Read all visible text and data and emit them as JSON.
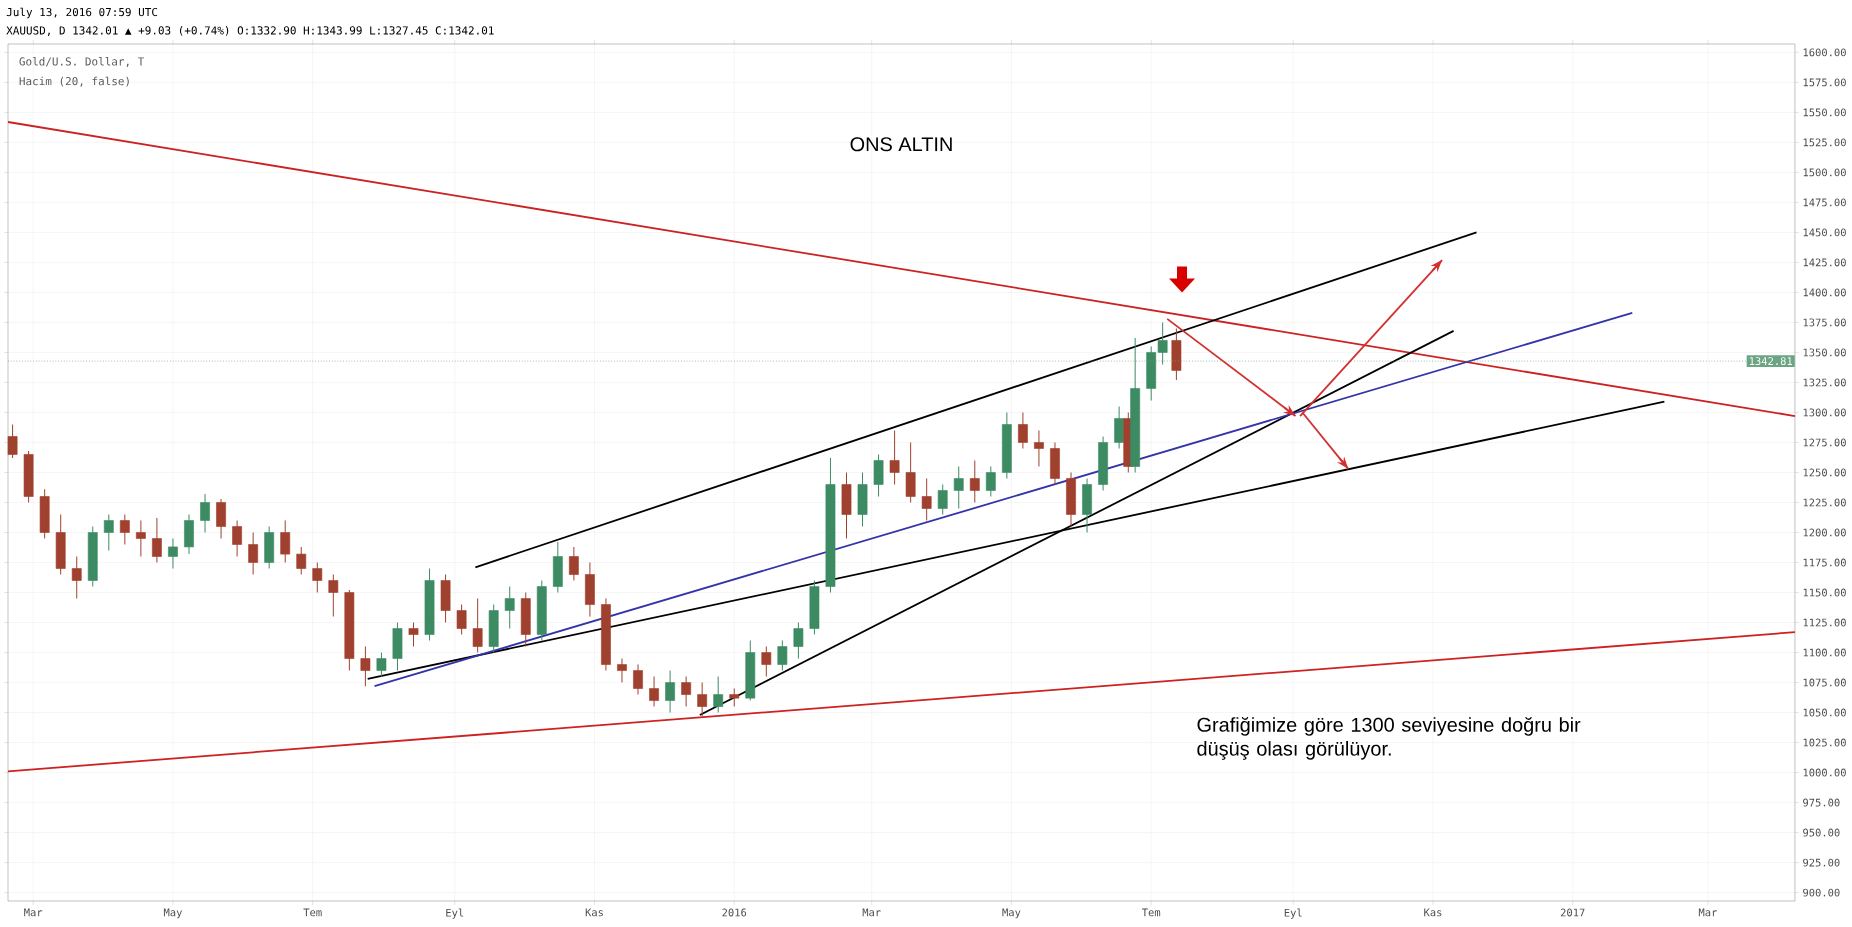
{
  "chart_data": {
    "type": "candlestick",
    "title": "ONS ALTIN",
    "annotations": [
      "July 13, 2016 07:59 UTC",
      "XAUUSD, D 1342.01 ▲ +9.03 (+0.74%) O:1332.90 H:1343.99 L:1327.45 C:1342.01",
      "Gold/U.S. Dollar, T",
      "Hacim (20, false)",
      "Grafiğimize göre 1300 seviyesine doğru bir düşüş olası görülüyor."
    ],
    "x": [
      "2015-02-20",
      "2015-02-27",
      "2015-03-06",
      "2015-03-13",
      "2015-03-20",
      "2015-03-27",
      "2015-04-03",
      "2015-04-10",
      "2015-04-17",
      "2015-04-24",
      "2015-05-01",
      "2015-05-08",
      "2015-05-15",
      "2015-05-22",
      "2015-05-29",
      "2015-06-05",
      "2015-06-12",
      "2015-06-19",
      "2015-06-26",
      "2015-07-03",
      "2015-07-10",
      "2015-07-17",
      "2015-07-24",
      "2015-07-31",
      "2015-08-07",
      "2015-08-14",
      "2015-08-21",
      "2015-08-28",
      "2015-09-04",
      "2015-09-11",
      "2015-09-18",
      "2015-09-25",
      "2015-10-02",
      "2015-10-09",
      "2015-10-16",
      "2015-10-23",
      "2015-10-30",
      "2015-11-06",
      "2015-11-13",
      "2015-11-20",
      "2015-11-27",
      "2015-12-04",
      "2015-12-11",
      "2015-12-18",
      "2015-12-25",
      "2016-01-01",
      "2016-01-08",
      "2016-01-15",
      "2016-01-22",
      "2016-01-29",
      "2016-02-05",
      "2016-02-12",
      "2016-02-19",
      "2016-02-26",
      "2016-03-04",
      "2016-03-11",
      "2016-03-18",
      "2016-03-25",
      "2016-04-01",
      "2016-04-08",
      "2016-04-15",
      "2016-04-22",
      "2016-04-29",
      "2016-05-06",
      "2016-05-13",
      "2016-05-20",
      "2016-05-27",
      "2016-06-03",
      "2016-06-10",
      "2016-06-17",
      "2016-06-21",
      "2016-06-24",
      "2016-07-01",
      "2016-07-06",
      "2016-07-12"
    ],
    "ohlc": [
      [
        1280,
        1290,
        1262,
        1265
      ],
      [
        1265,
        1268,
        1225,
        1230
      ],
      [
        1230,
        1236,
        1195,
        1200
      ],
      [
        1200,
        1215,
        1165,
        1170
      ],
      [
        1170,
        1180,
        1145,
        1160
      ],
      [
        1160,
        1205,
        1155,
        1200
      ],
      [
        1200,
        1215,
        1185,
        1210
      ],
      [
        1210,
        1215,
        1190,
        1200
      ],
      [
        1200,
        1210,
        1180,
        1195
      ],
      [
        1195,
        1212,
        1175,
        1180
      ],
      [
        1180,
        1195,
        1170,
        1188
      ],
      [
        1188,
        1215,
        1182,
        1210
      ],
      [
        1210,
        1232,
        1200,
        1225
      ],
      [
        1225,
        1228,
        1195,
        1205
      ],
      [
        1205,
        1210,
        1180,
        1190
      ],
      [
        1190,
        1200,
        1165,
        1175
      ],
      [
        1175,
        1205,
        1170,
        1200
      ],
      [
        1200,
        1210,
        1175,
        1182
      ],
      [
        1182,
        1188,
        1165,
        1170
      ],
      [
        1170,
        1175,
        1150,
        1160
      ],
      [
        1160,
        1165,
        1130,
        1150
      ],
      [
        1150,
        1152,
        1085,
        1095
      ],
      [
        1095,
        1105,
        1072,
        1085
      ],
      [
        1085,
        1100,
        1080,
        1095
      ],
      [
        1095,
        1125,
        1085,
        1120
      ],
      [
        1120,
        1125,
        1105,
        1115
      ],
      [
        1115,
        1170,
        1110,
        1160
      ],
      [
        1160,
        1165,
        1125,
        1135
      ],
      [
        1135,
        1140,
        1115,
        1120
      ],
      [
        1120,
        1145,
        1100,
        1105
      ],
      [
        1105,
        1140,
        1100,
        1135
      ],
      [
        1135,
        1155,
        1120,
        1145
      ],
      [
        1145,
        1150,
        1105,
        1115
      ],
      [
        1115,
        1160,
        1110,
        1155
      ],
      [
        1155,
        1192,
        1150,
        1180
      ],
      [
        1180,
        1188,
        1160,
        1165
      ],
      [
        1165,
        1175,
        1130,
        1140
      ],
      [
        1140,
        1145,
        1085,
        1090
      ],
      [
        1090,
        1095,
        1075,
        1085
      ],
      [
        1085,
        1090,
        1065,
        1070
      ],
      [
        1070,
        1080,
        1055,
        1060
      ],
      [
        1060,
        1085,
        1050,
        1075
      ],
      [
        1075,
        1080,
        1055,
        1065
      ],
      [
        1065,
        1075,
        1047,
        1055
      ],
      [
        1055,
        1080,
        1050,
        1065
      ],
      [
        1065,
        1070,
        1055,
        1062
      ],
      [
        1062,
        1110,
        1060,
        1100
      ],
      [
        1100,
        1105,
        1080,
        1090
      ],
      [
        1090,
        1110,
        1085,
        1105
      ],
      [
        1105,
        1125,
        1095,
        1120
      ],
      [
        1120,
        1160,
        1115,
        1155
      ],
      [
        1155,
        1262,
        1150,
        1240
      ],
      [
        1240,
        1250,
        1195,
        1215
      ],
      [
        1215,
        1250,
        1205,
        1240
      ],
      [
        1240,
        1265,
        1230,
        1260
      ],
      [
        1260,
        1285,
        1240,
        1250
      ],
      [
        1250,
        1275,
        1225,
        1230
      ],
      [
        1230,
        1245,
        1210,
        1220
      ],
      [
        1220,
        1240,
        1215,
        1235
      ],
      [
        1235,
        1255,
        1220,
        1245
      ],
      [
        1245,
        1260,
        1225,
        1235
      ],
      [
        1235,
        1255,
        1230,
        1250
      ],
      [
        1250,
        1300,
        1245,
        1290
      ],
      [
        1290,
        1300,
        1270,
        1275
      ],
      [
        1275,
        1285,
        1255,
        1270
      ],
      [
        1270,
        1275,
        1240,
        1245
      ],
      [
        1245,
        1250,
        1205,
        1215
      ],
      [
        1215,
        1245,
        1200,
        1240
      ],
      [
        1240,
        1280,
        1235,
        1275
      ],
      [
        1275,
        1305,
        1270,
        1295
      ],
      [
        1295,
        1300,
        1250,
        1255
      ],
      [
        1255,
        1362,
        1250,
        1320
      ],
      [
        1320,
        1355,
        1310,
        1350
      ],
      [
        1350,
        1375,
        1340,
        1360
      ],
      [
        1360,
        1370,
        1327,
        1335
      ]
    ],
    "series": [
      {
        "type": "line",
        "color": "#cc2222",
        "x": [
          "2015-02-18",
          "2017-04-08"
        ],
        "values": [
          1542,
          1297
        ]
      },
      {
        "type": "line",
        "color": "#cc2222",
        "x": [
          "2015-02-18",
          "2017-04-08"
        ],
        "values": [
          1001,
          1117
        ]
      },
      {
        "type": "line",
        "color": "#000000",
        "x": [
          "2015-09-10",
          "2016-11-20"
        ],
        "values": [
          1171,
          1450
        ]
      },
      {
        "type": "line",
        "color": "#000000",
        "x": [
          "2015-07-25",
          "2017-02-10"
        ],
        "values": [
          1078,
          1309
        ]
      },
      {
        "type": "line",
        "color": "#000000",
        "x": [
          "2015-12-17",
          "2016-11-10"
        ],
        "values": [
          1048,
          1368
        ]
      },
      {
        "type": "line",
        "color": "#3333aa",
        "x": [
          "2015-07-28",
          "2017-01-27"
        ],
        "values": [
          1072,
          1383
        ]
      },
      {
        "type": "line",
        "color": "#d32f2f",
        "x": [
          "2016-07-08",
          "2016-09-02"
        ],
        "values": [
          1378,
          1297
        ]
      },
      {
        "type": "line",
        "color": "#d32f2f",
        "x": [
          "2016-09-04",
          "2016-11-05"
        ],
        "values": [
          1297,
          1427
        ]
      },
      {
        "type": "line",
        "color": "#d32f2f",
        "x": [
          "2016-09-05",
          "2016-09-25"
        ],
        "values": [
          1300,
          1253
        ]
      }
    ],
    "ref_lines": [
      {
        "axis": "y",
        "value": 1342.81,
        "label": "1342.81",
        "color": "#6ba583",
        "line_style": "dotted"
      }
    ],
    "xlim": [
      "2015-02-18",
      "2017-04-08"
    ],
    "xticks": [
      {
        "value": "2015-03-01",
        "label": "Mar"
      },
      {
        "value": "2015-05-01",
        "label": "May"
      },
      {
        "value": "2015-07-01",
        "label": "Tem"
      },
      {
        "value": "2015-09-01",
        "label": "Eyl"
      },
      {
        "value": "2015-11-01",
        "label": "Kas"
      },
      {
        "value": "2016-01-01",
        "label": "2016"
      },
      {
        "value": "2016-03-01",
        "label": "Mar"
      },
      {
        "value": "2016-05-01",
        "label": "May"
      },
      {
        "value": "2016-07-01",
        "label": "Tem"
      },
      {
        "value": "2016-09-01",
        "label": "Eyl"
      },
      {
        "value": "2016-11-01",
        "label": "Kas"
      },
      {
        "value": "2017-01-01",
        "label": "2017"
      },
      {
        "value": "2017-03-01",
        "label": "Mar"
      }
    ],
    "ylim": [
      893,
      1607
    ],
    "yticks": [
      {
        "value": 900,
        "label": "900.00"
      },
      {
        "value": 925,
        "label": "925.00"
      },
      {
        "value": 950,
        "label": "950.00"
      },
      {
        "value": 975,
        "label": "975.00"
      },
      {
        "value": 1000,
        "label": "1000.00"
      },
      {
        "value": 1025,
        "label": "1025.00"
      },
      {
        "value": 1050,
        "label": "1050.00"
      },
      {
        "value": 1075,
        "label": "1075.00"
      },
      {
        "value": 1100,
        "label": "1100.00"
      },
      {
        "value": 1125,
        "label": "1125.00"
      },
      {
        "value": 1150,
        "label": "1150.00"
      },
      {
        "value": 1175,
        "label": "1175.00"
      },
      {
        "value": 1200,
        "label": "1200.00"
      },
      {
        "value": 1225,
        "label": "1225.00"
      },
      {
        "value": 1250,
        "label": "1250.00"
      },
      {
        "value": 1275,
        "label": "1275.00"
      },
      {
        "value": 1300,
        "label": "1300.00"
      },
      {
        "value": 1325,
        "label": "1325.00"
      },
      {
        "value": 1350,
        "label": "1350.00"
      },
      {
        "value": 1375,
        "label": "1375.00"
      },
      {
        "value": 1400,
        "label": "1400.00"
      },
      {
        "value": 1425,
        "label": "1425.00"
      },
      {
        "value": 1450,
        "label": "1450.00"
      },
      {
        "value": 1475,
        "label": "1475.00"
      },
      {
        "value": 1500,
        "label": "1500.00"
      },
      {
        "value": 1525,
        "label": "1525.00"
      },
      {
        "value": 1550,
        "label": "1550.00"
      },
      {
        "value": 1575,
        "label": "1575.00"
      },
      {
        "value": 1600,
        "label": "1600.00"
      }
    ],
    "grid": true
  }
}
